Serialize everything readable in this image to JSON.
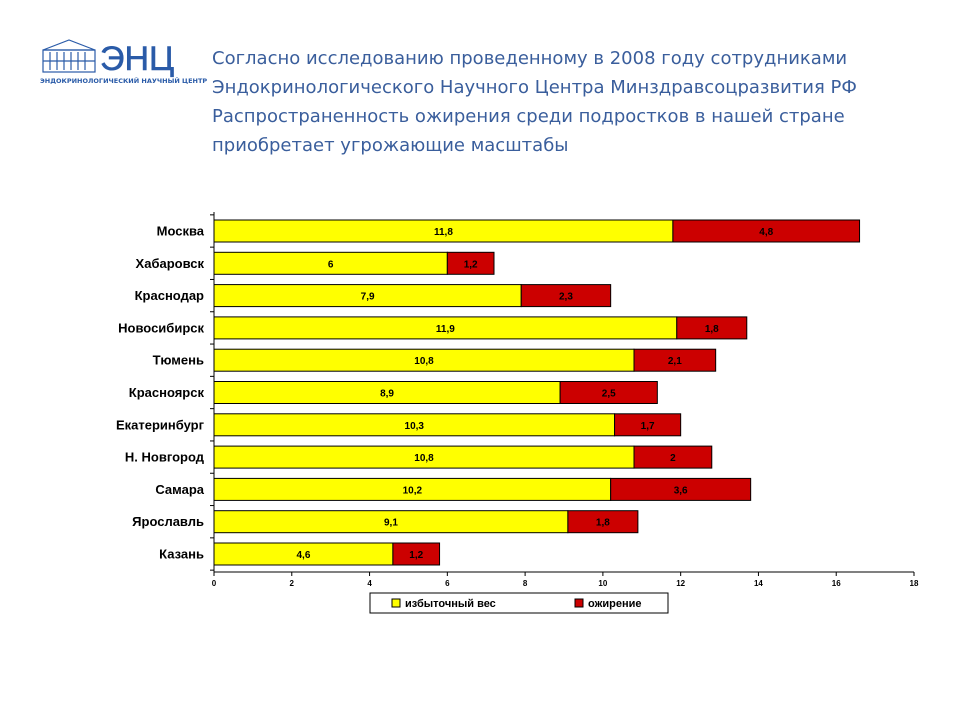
{
  "logo": {
    "mark": "ЭНЦ",
    "caption": "ЭНДОКРИНОЛОГИЧЕСКИЙ НАУЧНЫЙ ЦЕНТР",
    "icon": "building-icon"
  },
  "title_lines": [
    "Согласно исследованию проведенному в 2008 году сотрудниками",
    "Эндокринологического Научного Центра Минздравсоцразвития РФ",
    "Распространенность ожирения среди подростков в нашей стране",
    "приобретает угрожающие масштабы"
  ],
  "chart_data": {
    "type": "bar",
    "orientation": "horizontal",
    "stacked": true,
    "categories": [
      "Москва",
      "Хабаровск",
      "Краснодар",
      "Новосибирск",
      "Тюмень",
      "Красноярск",
      "Екатеринбург",
      "Н. Новгород",
      "Самара",
      "Ярославль",
      "Казань"
    ],
    "series": [
      {
        "name": "избыточный вес",
        "color": "#ffff00",
        "values": [
          11.8,
          6,
          7.9,
          11.9,
          10.8,
          8.9,
          10.3,
          10.8,
          10.2,
          9.1,
          4.6
        ],
        "labels": [
          "11,8",
          "6",
          "7,9",
          "11,9",
          "10,8",
          "8,9",
          "10,3",
          "10,8",
          "10,2",
          "9,1",
          "4,6"
        ]
      },
      {
        "name": "ожирение",
        "color": "#cc0000",
        "values": [
          4.8,
          1.2,
          2.3,
          1.8,
          2.1,
          2.5,
          1.7,
          2,
          3.6,
          1.8,
          1.2
        ],
        "labels": [
          "4,8",
          "1,2",
          "2,3",
          "1,8",
          "2,1",
          "2,5",
          "1,7",
          "2",
          "3,6",
          "1,8",
          "1,2"
        ]
      }
    ],
    "xlim": [
      0,
      18
    ],
    "xticks": [
      "0",
      "2",
      "4",
      "6",
      "8",
      "10",
      "12",
      "14",
      "16",
      "18"
    ],
    "legend_position": "bottom",
    "grid": false
  }
}
